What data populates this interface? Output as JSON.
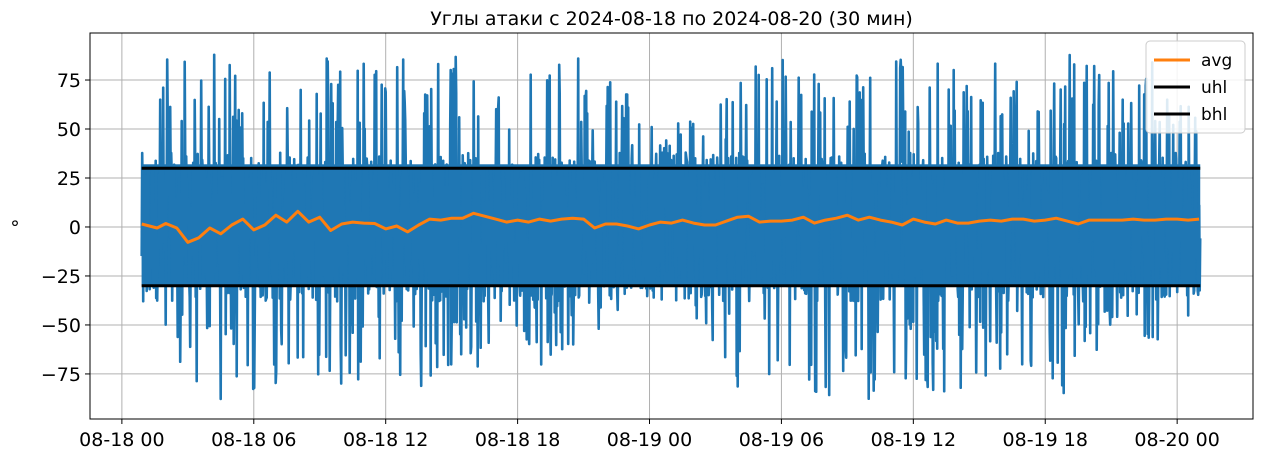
{
  "chart_data": {
    "type": "line",
    "title": "Углы атаки с 2024-08-18 по 2024-08-20 (30 мин)",
    "xlabel": "",
    "ylabel": "°",
    "x_tick_labels": [
      "08-18 00",
      "08-18 06",
      "08-18 12",
      "08-18 18",
      "08-19 00",
      "08-19 06",
      "08-19 12",
      "08-19 18",
      "08-20 00"
    ],
    "x_ticks_hours": [
      0,
      6,
      12,
      18,
      24,
      30,
      36,
      42,
      48
    ],
    "xlim_hours": [
      -1.45,
      51.45
    ],
    "y_ticks": [
      -75,
      -50,
      -25,
      0,
      25,
      50,
      75
    ],
    "ylim": [
      -98,
      99
    ],
    "grid": true,
    "legend_position": "top-right",
    "colors": {
      "raw": "#1f77b4",
      "avg": "#ff7f0e",
      "limits": "#000000"
    },
    "series": [
      {
        "name": "",
        "description": "raw angle of attack (dense noisy signal)",
        "data_extent_hours": [
          0.9,
          49.05
        ],
        "envelope": {
          "hours": [
            1,
            2,
            3,
            4,
            5,
            6,
            7,
            8,
            9,
            10,
            11,
            12,
            13,
            14,
            15,
            16,
            17,
            18,
            19,
            20,
            21,
            22,
            23,
            24,
            25,
            26,
            27,
            28,
            29,
            30,
            31,
            32,
            33,
            34,
            35,
            36,
            37,
            38,
            39,
            40,
            41,
            42,
            43,
            44,
            45,
            46,
            47,
            48,
            49
          ],
          "max": [
            62,
            88,
            89,
            88,
            89,
            89,
            87,
            89,
            89,
            90,
            88,
            86,
            89,
            85,
            89,
            89,
            88,
            90,
            86,
            88,
            86,
            80,
            72,
            55,
            52,
            58,
            64,
            84,
            88,
            89,
            87,
            88,
            86,
            89,
            88,
            87,
            86,
            84,
            85,
            84,
            86,
            85,
            89,
            88,
            84,
            86,
            85,
            86,
            60
          ],
          "min": [
            -40,
            -62,
            -78,
            -89,
            -88,
            -89,
            -87,
            -78,
            -83,
            -88,
            -87,
            -78,
            -82,
            -89,
            -88,
            -80,
            -63,
            -56,
            -70,
            -74,
            -55,
            -60,
            -35,
            -30,
            -28,
            -46,
            -60,
            -82,
            -78,
            -83,
            -87,
            -87,
            -82,
            -88,
            -88,
            -78,
            -86,
            -84,
            -85,
            -82,
            -72,
            -78,
            -90,
            -70,
            -65,
            -70,
            -60,
            -55,
            -40
          ]
        }
      },
      {
        "name": "avg",
        "x_hours": [
          0.9,
          1.6,
          2.0,
          2.5,
          3.0,
          3.5,
          4.0,
          4.5,
          5.0,
          5.5,
          6.0,
          6.5,
          7.0,
          7.5,
          8.0,
          8.5,
          9.0,
          9.5,
          10.0,
          10.5,
          11.0,
          11.5,
          12.0,
          12.5,
          13.0,
          13.5,
          14.0,
          14.5,
          15.0,
          15.5,
          16.0,
          16.5,
          17.0,
          17.5,
          18.0,
          18.5,
          19.0,
          19.5,
          20.0,
          20.5,
          21.0,
          21.5,
          22.0,
          22.5,
          23.0,
          23.5,
          24.0,
          24.5,
          25.0,
          25.5,
          26.0,
          26.5,
          27.0,
          27.5,
          28.0,
          28.5,
          29.0,
          29.5,
          30.0,
          30.5,
          31.0,
          31.5,
          32.0,
          32.5,
          33.0,
          33.5,
          34.0,
          34.5,
          35.0,
          35.5,
          36.0,
          36.5,
          37.0,
          37.5,
          38.0,
          38.5,
          39.0,
          39.5,
          40.0,
          40.5,
          41.0,
          41.5,
          42.0,
          42.5,
          43.0,
          43.5,
          44.0,
          44.5,
          45.0,
          45.5,
          46.0,
          46.5,
          47.0,
          47.5,
          48.0,
          48.5,
          49.0
        ],
        "y": [
          1.5,
          -0.5,
          1.8,
          -0.5,
          -7.8,
          -5.5,
          -0.5,
          -3.5,
          1.0,
          4.0,
          -1.5,
          1.0,
          6.0,
          2.5,
          8.0,
          2.5,
          5.0,
          -1.8,
          1.5,
          2.5,
          2.0,
          1.8,
          -1.0,
          0.5,
          -2.5,
          1.0,
          4.0,
          3.5,
          4.5,
          4.5,
          7.0,
          5.5,
          4.0,
          2.5,
          3.5,
          2.5,
          4.0,
          3.0,
          4.0,
          4.5,
          4.0,
          -0.5,
          1.5,
          1.5,
          0.5,
          -1.0,
          1.0,
          2.5,
          2.0,
          3.5,
          2.0,
          1.0,
          1.0,
          3.0,
          5.0,
          5.5,
          2.5,
          3.0,
          3.0,
          3.5,
          5.0,
          2.0,
          3.5,
          4.5,
          6.0,
          3.5,
          5.0,
          3.5,
          2.5,
          1.0,
          4.0,
          2.5,
          1.5,
          3.5,
          2.0,
          2.0,
          3.0,
          3.5,
          3.0,
          4.0,
          4.0,
          3.0,
          3.5,
          4.5,
          3.0,
          1.5,
          3.5,
          3.5,
          3.5,
          3.5,
          4.0,
          3.5,
          3.5,
          4.0,
          4.0,
          3.5,
          4.0
        ]
      },
      {
        "name": "uhl",
        "x_hours": [
          0.9,
          49.05
        ],
        "y": [
          30,
          30
        ]
      },
      {
        "name": "bhl",
        "x_hours": [
          0.9,
          49.05
        ],
        "y": [
          -30,
          -30
        ]
      }
    ]
  }
}
